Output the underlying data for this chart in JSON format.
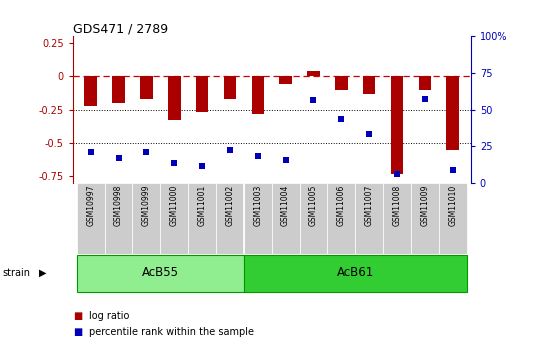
{
  "title": "GDS471 / 2789",
  "samples": [
    "GSM10997",
    "GSM10998",
    "GSM10999",
    "GSM11000",
    "GSM11001",
    "GSM11002",
    "GSM11003",
    "GSM11004",
    "GSM11005",
    "GSM11006",
    "GSM11007",
    "GSM11008",
    "GSM11009",
    "GSM11010"
  ],
  "log_ratio": [
    -0.22,
    -0.2,
    -0.17,
    -0.33,
    -0.27,
    -0.17,
    -0.28,
    -0.06,
    0.04,
    -0.1,
    -0.13,
    -0.73,
    -0.1,
    -0.55
  ],
  "pct_rank": [
    18,
    14,
    18,
    10,
    8,
    20,
    15,
    12,
    57,
    43,
    32,
    2,
    58,
    5
  ],
  "groups": [
    {
      "label": "AcB55",
      "start": 0,
      "end": 6
    },
    {
      "label": "AcB61",
      "start": 6,
      "end": 14
    }
  ],
  "grp_color_1": "#90EE90",
  "grp_color_2": "#32CD32",
  "grp_border_color": "#009900",
  "bar_color": "#AA0000",
  "dot_color": "#0000BB",
  "ylim_left": [
    -0.8,
    0.3
  ],
  "ylim_right": [
    0,
    100
  ],
  "bg_color": "#ffffff",
  "plot_bg_color": "#ffffff",
  "tick_area_color": "#cccccc",
  "legend_items": [
    "log ratio",
    "percentile rank within the sample"
  ],
  "legend_colors": [
    "#AA0000",
    "#0000BB"
  ]
}
